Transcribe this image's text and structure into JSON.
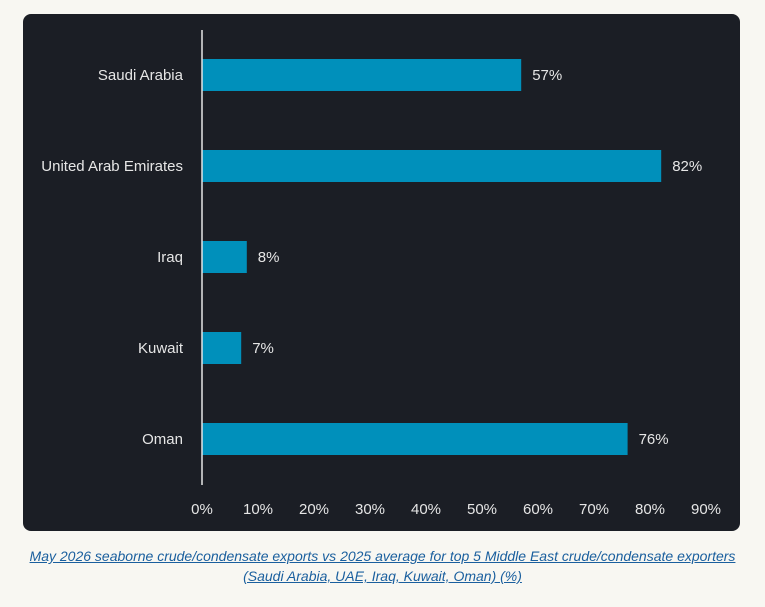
{
  "chart_data": {
    "type": "bar",
    "orientation": "horizontal",
    "categories": [
      "Saudi Arabia",
      "United Arab Emirates",
      "Iraq",
      "Kuwait",
      "Oman"
    ],
    "values": [
      57,
      82,
      8,
      7,
      76
    ],
    "value_labels": [
      "57%",
      "82%",
      "8%",
      "7%",
      "76%"
    ],
    "xlim": [
      0,
      90
    ],
    "x_ticks": [
      0,
      10,
      20,
      30,
      40,
      50,
      60,
      70,
      80,
      90
    ],
    "x_tick_labels": [
      "0%",
      "10%",
      "20%",
      "30%",
      "40%",
      "50%",
      "60%",
      "70%",
      "80%",
      "90%"
    ],
    "grid": false,
    "colors": {
      "bar": "#0090bb",
      "background": "#1b1e25",
      "text": "#e6e6e6",
      "axis": "#e6e6e6"
    }
  },
  "caption": {
    "text": "May 2026 seaborne crude/condensate exports vs 2025 average for top 5 Middle East crude/condensate exporters (Saudi Arabia, UAE, Iraq, Kuwait, Oman) (%)"
  }
}
